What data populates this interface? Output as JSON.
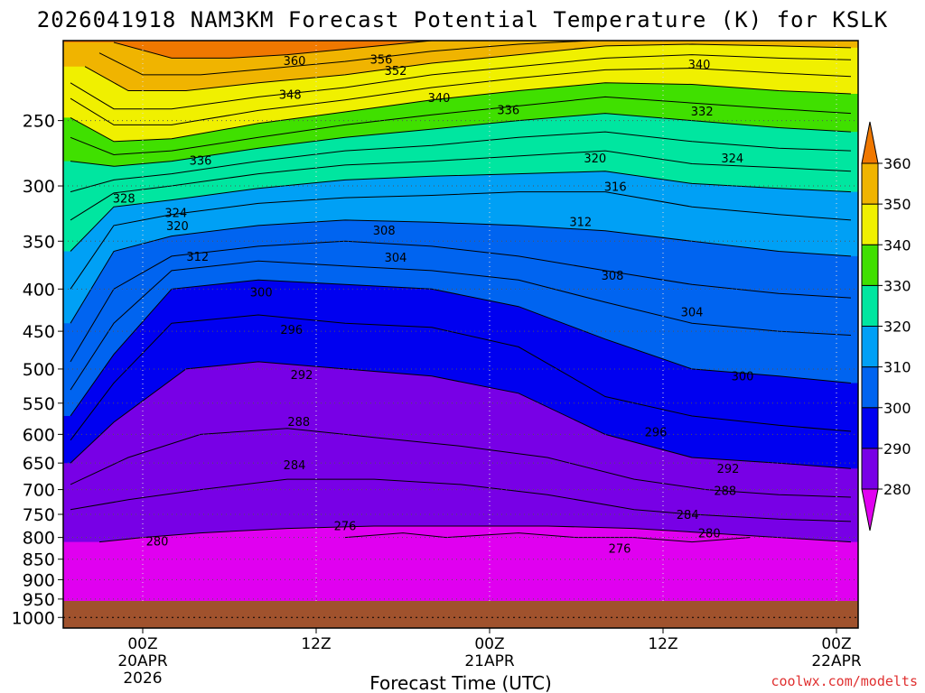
{
  "chart_data": {
    "type": "heatmap",
    "title": "2026041918 NAM3KM Forecast Potential Temperature (K) for KSLK",
    "xlabel": "Forecast Time (UTC)",
    "ylabel": "",
    "y_axis": {
      "scale": "log-pressure",
      "range": [
        1030,
        200
      ],
      "ticks": [
        250,
        300,
        350,
        400,
        450,
        500,
        550,
        600,
        650,
        700,
        750,
        800,
        850,
        900,
        950,
        1000
      ]
    },
    "x_axis": {
      "units": "forecast hours from 18Z 19APR",
      "range": [
        0.5,
        55.5
      ],
      "ticks": [
        {
          "hour": 6,
          "label": "00Z",
          "sub": "20APR",
          "sub2": "2026"
        },
        {
          "hour": 18,
          "label": "12Z",
          "sub": "",
          "sub2": ""
        },
        {
          "hour": 30,
          "label": "00Z",
          "sub": "21APR",
          "sub2": ""
        },
        {
          "hour": 42,
          "label": "12Z",
          "sub": "",
          "sub2": ""
        },
        {
          "hour": 54,
          "label": "00Z",
          "sub": "22APR",
          "sub2": ""
        }
      ]
    },
    "ground_pressure": 955,
    "colorbar": {
      "levels": [
        280,
        290,
        300,
        310,
        320,
        330,
        340,
        350,
        360
      ],
      "colors": [
        "#e000f0",
        "#7800e6",
        "#0000f0",
        "#0064f0",
        "#00a0f5",
        "#00e6a0",
        "#40e000",
        "#f0f000",
        "#f0b400",
        "#f07800"
      ]
    },
    "isentropes": [
      {
        "theta": 276,
        "points": [
          [
            20,
            800
          ],
          [
            24,
            790
          ],
          [
            27,
            800
          ],
          [
            32,
            790
          ],
          [
            36,
            800
          ],
          [
            40,
            800
          ],
          [
            44,
            810
          ],
          [
            48,
            800
          ]
        ]
      },
      {
        "theta": 280,
        "points": [
          [
            3,
            810
          ],
          [
            6,
            800
          ],
          [
            10,
            790
          ],
          [
            16,
            780
          ],
          [
            22,
            775
          ],
          [
            28,
            775
          ],
          [
            34,
            775
          ],
          [
            40,
            780
          ],
          [
            45,
            790
          ],
          [
            50,
            800
          ],
          [
            55,
            810
          ]
        ]
      },
      {
        "theta": 284,
        "points": [
          [
            1,
            740
          ],
          [
            5,
            720
          ],
          [
            10,
            700
          ],
          [
            16,
            680
          ],
          [
            22,
            680
          ],
          [
            28,
            690
          ],
          [
            34,
            710
          ],
          [
            40,
            740
          ],
          [
            44,
            750
          ],
          [
            50,
            760
          ],
          [
            55,
            765
          ]
        ]
      },
      {
        "theta": 288,
        "points": [
          [
            1,
            690
          ],
          [
            5,
            640
          ],
          [
            10,
            600
          ],
          [
            16,
            590
          ],
          [
            22,
            605
          ],
          [
            28,
            620
          ],
          [
            34,
            640
          ],
          [
            40,
            680
          ],
          [
            45,
            700
          ],
          [
            50,
            710
          ],
          [
            55,
            715
          ]
        ]
      },
      {
        "theta": 292,
        "points": [
          [
            1,
            650
          ],
          [
            4,
            580
          ],
          [
            9,
            500
          ],
          [
            14,
            490
          ],
          [
            20,
            500
          ],
          [
            26,
            510
          ],
          [
            32,
            535
          ],
          [
            38,
            600
          ],
          [
            44,
            640
          ],
          [
            50,
            650
          ],
          [
            55,
            660
          ]
        ]
      },
      {
        "theta": 296,
        "points": [
          [
            1,
            610
          ],
          [
            4,
            520
          ],
          [
            8,
            440
          ],
          [
            14,
            430
          ],
          [
            20,
            440
          ],
          [
            26,
            445
          ],
          [
            32,
            470
          ],
          [
            38,
            540
          ],
          [
            44,
            570
          ],
          [
            50,
            585
          ],
          [
            55,
            595
          ]
        ]
      },
      {
        "theta": 300,
        "points": [
          [
            1,
            570
          ],
          [
            4,
            480
          ],
          [
            8,
            400
          ],
          [
            14,
            390
          ],
          [
            20,
            395
          ],
          [
            26,
            400
          ],
          [
            32,
            420
          ],
          [
            38,
            460
          ],
          [
            44,
            500
          ],
          [
            50,
            510
          ],
          [
            55,
            520
          ]
        ]
      },
      {
        "theta": 304,
        "points": [
          [
            1,
            530
          ],
          [
            4,
            440
          ],
          [
            8,
            380
          ],
          [
            14,
            370
          ],
          [
            20,
            375
          ],
          [
            26,
            380
          ],
          [
            32,
            390
          ],
          [
            38,
            415
          ],
          [
            44,
            440
          ],
          [
            50,
            450
          ],
          [
            55,
            455
          ]
        ]
      },
      {
        "theta": 308,
        "points": [
          [
            1,
            490
          ],
          [
            4,
            400
          ],
          [
            8,
            365
          ],
          [
            14,
            355
          ],
          [
            20,
            350
          ],
          [
            26,
            355
          ],
          [
            32,
            365
          ],
          [
            38,
            380
          ],
          [
            44,
            395
          ],
          [
            50,
            405
          ],
          [
            55,
            410
          ]
        ]
      },
      {
        "theta": 312,
        "points": [
          [
            1,
            440
          ],
          [
            4,
            360
          ],
          [
            8,
            345
          ],
          [
            14,
            335
          ],
          [
            20,
            330
          ],
          [
            26,
            332
          ],
          [
            32,
            335
          ],
          [
            38,
            340
          ],
          [
            44,
            350
          ],
          [
            50,
            360
          ],
          [
            55,
            365
          ]
        ]
      },
      {
        "theta": 316,
        "points": [
          [
            1,
            400
          ],
          [
            4,
            335
          ],
          [
            8,
            325
          ],
          [
            14,
            315
          ],
          [
            20,
            310
          ],
          [
            26,
            308
          ],
          [
            32,
            305
          ],
          [
            38,
            305
          ],
          [
            44,
            318
          ],
          [
            50,
            325
          ],
          [
            55,
            330
          ]
        ]
      },
      {
        "theta": 320,
        "points": [
          [
            1,
            360
          ],
          [
            4,
            318
          ],
          [
            8,
            312
          ],
          [
            14,
            302
          ],
          [
            20,
            295
          ],
          [
            26,
            292
          ],
          [
            32,
            290
          ],
          [
            38,
            288
          ],
          [
            44,
            298
          ],
          [
            50,
            302
          ],
          [
            55,
            305
          ]
        ]
      },
      {
        "theta": 324,
        "points": [
          [
            1,
            330
          ],
          [
            4,
            306
          ],
          [
            8,
            300
          ],
          [
            14,
            290
          ],
          [
            20,
            283
          ],
          [
            26,
            280
          ],
          [
            32,
            276
          ],
          [
            38,
            272
          ],
          [
            44,
            282
          ],
          [
            50,
            285
          ],
          [
            55,
            288
          ]
        ]
      },
      {
        "theta": 328,
        "points": [
          [
            1,
            305
          ],
          [
            4,
            295
          ],
          [
            8,
            290
          ],
          [
            14,
            280
          ],
          [
            20,
            272
          ],
          [
            26,
            268
          ],
          [
            32,
            262
          ],
          [
            38,
            258
          ],
          [
            44,
            265
          ],
          [
            50,
            270
          ],
          [
            55,
            272
          ]
        ]
      },
      {
        "theta": 332,
        "points": [
          [
            1,
            280
          ],
          [
            4,
            284
          ],
          [
            8,
            280
          ],
          [
            14,
            270
          ],
          [
            20,
            262
          ],
          [
            26,
            256
          ],
          [
            32,
            250
          ],
          [
            38,
            245
          ],
          [
            44,
            250
          ],
          [
            50,
            255
          ],
          [
            55,
            258
          ]
        ]
      },
      {
        "theta": 336,
        "points": [
          [
            1,
            262
          ],
          [
            4,
            275
          ],
          [
            8,
            272
          ],
          [
            14,
            262
          ],
          [
            20,
            253
          ],
          [
            26,
            246
          ],
          [
            32,
            240
          ],
          [
            38,
            234
          ],
          [
            44,
            238
          ],
          [
            50,
            242
          ],
          [
            55,
            245
          ]
        ]
      },
      {
        "theta": 340,
        "points": [
          [
            1,
            248
          ],
          [
            4,
            265
          ],
          [
            8,
            263
          ],
          [
            14,
            252
          ],
          [
            20,
            244
          ],
          [
            26,
            236
          ],
          [
            32,
            230
          ],
          [
            38,
            225
          ],
          [
            44,
            226
          ],
          [
            50,
            230
          ],
          [
            55,
            232
          ]
        ]
      },
      {
        "theta": 344,
        "points": [
          [
            1,
            235
          ],
          [
            4,
            253
          ],
          [
            8,
            253
          ],
          [
            14,
            243
          ],
          [
            20,
            236
          ],
          [
            26,
            228
          ],
          [
            32,
            222
          ],
          [
            38,
            217
          ],
          [
            44,
            216
          ],
          [
            50,
            219
          ],
          [
            55,
            221
          ]
        ]
      },
      {
        "theta": 348,
        "points": [
          [
            1,
            225
          ],
          [
            4,
            242
          ],
          [
            8,
            242
          ],
          [
            14,
            234
          ],
          [
            20,
            228
          ],
          [
            26,
            220
          ],
          [
            32,
            215
          ],
          [
            38,
            210
          ],
          [
            44,
            208
          ],
          [
            50,
            210
          ],
          [
            55,
            211
          ]
        ]
      },
      {
        "theta": 352,
        "points": [
          [
            2,
            215
          ],
          [
            5,
            230
          ],
          [
            9,
            230
          ],
          [
            14,
            225
          ],
          [
            20,
            220
          ],
          [
            26,
            213
          ],
          [
            32,
            208
          ],
          [
            38,
            203
          ],
          [
            44,
            202
          ],
          [
            50,
            203
          ],
          [
            55,
            204
          ]
        ]
      },
      {
        "theta": 356,
        "points": [
          [
            3,
            207
          ],
          [
            6,
            220
          ],
          [
            10,
            220
          ],
          [
            15,
            216
          ],
          [
            20,
            212
          ],
          [
            26,
            206
          ],
          [
            32,
            202
          ],
          [
            37,
            200
          ]
        ]
      },
      {
        "theta": 360,
        "points": [
          [
            4,
            201
          ],
          [
            8,
            210
          ],
          [
            12,
            210
          ],
          [
            16,
            208
          ],
          [
            21,
            204
          ],
          [
            26,
            200
          ]
        ]
      }
    ],
    "contour_labels": [
      {
        "text": "360",
        "hour": 16.5,
        "p": 212
      },
      {
        "text": "356",
        "hour": 22.5,
        "p": 211
      },
      {
        "text": "352",
        "hour": 23.5,
        "p": 218
      },
      {
        "text": "340",
        "hour": 44.5,
        "p": 214
      },
      {
        "text": "348",
        "hour": 16.2,
        "p": 233
      },
      {
        "text": "340",
        "hour": 26.5,
        "p": 235
      },
      {
        "text": "336",
        "hour": 31.3,
        "p": 243
      },
      {
        "text": "332",
        "hour": 44.7,
        "p": 244
      },
      {
        "text": "336",
        "hour": 10.0,
        "p": 280
      },
      {
        "text": "320",
        "hour": 37.3,
        "p": 278
      },
      {
        "text": "324",
        "hour": 46.8,
        "p": 278
      },
      {
        "text": "316",
        "hour": 38.7,
        "p": 301
      },
      {
        "text": "328",
        "hour": 4.7,
        "p": 311
      },
      {
        "text": "324",
        "hour": 8.3,
        "p": 324
      },
      {
        "text": "320",
        "hour": 8.4,
        "p": 336
      },
      {
        "text": "312",
        "hour": 36.3,
        "p": 332
      },
      {
        "text": "308",
        "hour": 22.7,
        "p": 340
      },
      {
        "text": "304",
        "hour": 23.5,
        "p": 367
      },
      {
        "text": "312",
        "hour": 9.8,
        "p": 366
      },
      {
        "text": "308",
        "hour": 38.5,
        "p": 386
      },
      {
        "text": "300",
        "hour": 14.2,
        "p": 404
      },
      {
        "text": "304",
        "hour": 44.0,
        "p": 427
      },
      {
        "text": "296",
        "hour": 16.3,
        "p": 449
      },
      {
        "text": "300",
        "hour": 47.5,
        "p": 511
      },
      {
        "text": "292",
        "hour": 17.0,
        "p": 509
      },
      {
        "text": "288",
        "hour": 16.8,
        "p": 580
      },
      {
        "text": "296",
        "hour": 41.5,
        "p": 597
      },
      {
        "text": "284",
        "hour": 16.5,
        "p": 655
      },
      {
        "text": "292",
        "hour": 46.5,
        "p": 661
      },
      {
        "text": "288",
        "hour": 46.3,
        "p": 703
      },
      {
        "text": "284",
        "hour": 43.7,
        "p": 752
      },
      {
        "text": "276",
        "hour": 20.0,
        "p": 776
      },
      {
        "text": "280",
        "hour": 45.2,
        "p": 792
      },
      {
        "text": "280",
        "hour": 7.0,
        "p": 810
      },
      {
        "text": "276",
        "hour": 39.0,
        "p": 826
      }
    ],
    "watermark": "coolwx.com/modelts"
  }
}
